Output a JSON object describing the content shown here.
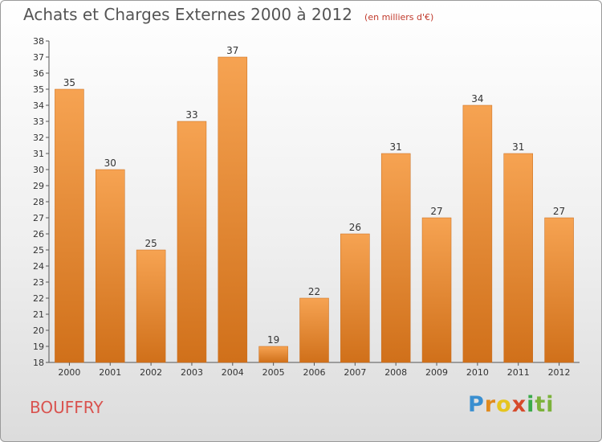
{
  "chart_data": {
    "type": "bar",
    "title": "Achats et Charges Externes 2000 à 2012",
    "subtitle": "(en milliers d'€)",
    "categories": [
      "2000",
      "2001",
      "2002",
      "2003",
      "2004",
      "2005",
      "2006",
      "2007",
      "2008",
      "2009",
      "2010",
      "2011",
      "2012"
    ],
    "values": [
      35,
      30,
      25,
      33,
      37,
      19,
      22,
      26,
      31,
      27,
      34,
      31,
      27
    ],
    "xlabel": "",
    "ylabel": "",
    "ylim": [
      18,
      38
    ],
    "yticks": [
      18,
      19,
      20,
      21,
      22,
      23,
      24,
      25,
      26,
      27,
      28,
      29,
      30,
      31,
      32,
      33,
      34,
      35,
      36,
      37,
      38
    ],
    "grid": false,
    "bar_color": "#f28a1e",
    "commune": "BOUFFRY"
  },
  "logo": {
    "p1": "P",
    "p2": "r",
    "p3": "o",
    "p4": "x",
    "p5": "i",
    "p6": "ti"
  }
}
